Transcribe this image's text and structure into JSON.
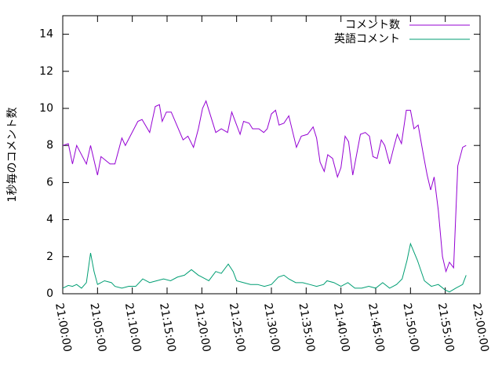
{
  "chart_data": {
    "type": "line",
    "ylabel": "1秒毎のコメント数",
    "xlim": [
      "21:00:00",
      "22:00:00"
    ],
    "xticks": [
      "21:00:00",
      "21:05:00",
      "21:10:00",
      "21:15:00",
      "21:20:00",
      "21:25:00",
      "21:30:00",
      "21:35:00",
      "21:40:00",
      "21:45:00",
      "21:50:00",
      "21:55:00",
      "22:00:00"
    ],
    "ylim": [
      0,
      15
    ],
    "yticks": [
      0,
      2,
      4,
      6,
      8,
      10,
      12,
      14
    ],
    "legend": "top-right",
    "series": [
      {
        "name": "コメント数",
        "color": "#9400d3",
        "x": [
          "21:00:00",
          "21:00:48",
          "21:01:24",
          "21:02:00",
          "21:03:24",
          "21:04:00",
          "21:05:00",
          "21:05:30",
          "21:06:48",
          "21:07:30",
          "21:08:30",
          "21:09:00",
          "21:10:48",
          "21:11:24",
          "21:12:30",
          "21:13:18",
          "21:13:54",
          "21:14:18",
          "21:14:54",
          "21:15:36",
          "21:17:18",
          "21:18:00",
          "21:18:48",
          "21:19:30",
          "21:20:06",
          "21:20:36",
          "21:22:00",
          "21:22:48",
          "21:23:42",
          "21:24:18",
          "21:25:30",
          "21:26:00",
          "21:26:48",
          "21:27:18",
          "21:28:12",
          "21:28:54",
          "21:29:24",
          "21:30:00",
          "21:30:36",
          "21:31:06",
          "21:31:48",
          "21:32:30",
          "21:33:36",
          "21:34:18",
          "21:35:12",
          "21:36:00",
          "21:36:30",
          "21:37:00",
          "21:37:36",
          "21:38:06",
          "21:38:48",
          "21:39:30",
          "21:40:00",
          "21:40:36",
          "21:41:06",
          "21:41:42",
          "21:42:48",
          "21:43:30",
          "21:44:06",
          "21:44:36",
          "21:45:12",
          "21:45:48",
          "21:46:18",
          "21:47:00",
          "21:47:36",
          "21:48:06",
          "21:48:42",
          "21:49:24",
          "21:50:00",
          "21:50:30",
          "21:51:06",
          "21:51:54",
          "21:52:24",
          "21:52:54",
          "21:53:24",
          "21:54:00",
          "21:54:36",
          "21:55:06",
          "21:55:36",
          "21:56:12",
          "21:56:48",
          "21:57:30",
          "21:58:00"
        ],
        "values": [
          8.0,
          8.1,
          7.0,
          8.0,
          7.0,
          8.0,
          6.4,
          7.4,
          7.0,
          7.0,
          8.4,
          8.0,
          9.3,
          9.4,
          8.7,
          10.1,
          10.2,
          9.3,
          9.8,
          9.8,
          8.3,
          8.5,
          7.9,
          8.9,
          10.0,
          10.4,
          8.7,
          8.9,
          8.7,
          9.8,
          8.6,
          9.3,
          9.2,
          8.9,
          8.9,
          8.7,
          8.9,
          9.7,
          9.9,
          9.1,
          9.2,
          9.6,
          7.9,
          8.5,
          8.6,
          9.0,
          8.4,
          7.1,
          6.6,
          7.5,
          7.3,
          6.3,
          6.8,
          8.5,
          8.2,
          6.4,
          8.6,
          8.7,
          8.5,
          7.4,
          7.3,
          8.3,
          8.0,
          7.0,
          7.9,
          8.6,
          8.1,
          9.9,
          9.9,
          8.9,
          9.1,
          7.4,
          6.4,
          5.6,
          6.3,
          4.5,
          2.0,
          1.2,
          1.7,
          1.4,
          6.9,
          7.9,
          8.0
        ]
      },
      {
        "name": "英語コメント",
        "color": "#009e73",
        "x": [
          "21:00:00",
          "21:00:48",
          "21:01:24",
          "21:02:00",
          "21:02:42",
          "21:03:24",
          "21:04:00",
          "21:04:30",
          "21:05:00",
          "21:06:00",
          "21:07:00",
          "21:07:30",
          "21:08:30",
          "21:09:30",
          "21:10:30",
          "21:11:30",
          "21:12:30",
          "21:13:30",
          "21:14:30",
          "21:15:30",
          "21:16:30",
          "21:17:30",
          "21:18:30",
          "21:19:30",
          "21:20:30",
          "21:21:00",
          "21:22:00",
          "21:22:48",
          "21:23:48",
          "21:24:30",
          "21:25:00",
          "21:26:00",
          "21:27:00",
          "21:28:00",
          "21:29:00",
          "21:30:00",
          "21:31:00",
          "21:31:48",
          "21:32:30",
          "21:33:30",
          "21:34:30",
          "21:35:30",
          "21:36:30",
          "21:37:30",
          "21:38:00",
          "21:39:00",
          "21:40:00",
          "21:41:00",
          "21:42:00",
          "21:43:00",
          "21:44:00",
          "21:45:00",
          "21:46:00",
          "21:47:00",
          "21:48:00",
          "21:48:48",
          "21:49:30",
          "21:50:00",
          "21:51:00",
          "21:52:00",
          "21:53:00",
          "21:54:00",
          "21:55:00",
          "21:55:36",
          "21:56:30",
          "21:57:30",
          "21:58:00"
        ],
        "values": [
          0.3,
          0.45,
          0.4,
          0.5,
          0.3,
          0.6,
          2.2,
          1.2,
          0.5,
          0.7,
          0.6,
          0.4,
          0.3,
          0.4,
          0.4,
          0.8,
          0.6,
          0.7,
          0.8,
          0.7,
          0.9,
          1.0,
          1.3,
          1.0,
          0.8,
          0.7,
          1.2,
          1.1,
          1.6,
          1.2,
          0.7,
          0.6,
          0.5,
          0.5,
          0.4,
          0.5,
          0.9,
          1.0,
          0.8,
          0.6,
          0.6,
          0.5,
          0.4,
          0.5,
          0.7,
          0.6,
          0.4,
          0.6,
          0.3,
          0.3,
          0.4,
          0.3,
          0.6,
          0.3,
          0.5,
          0.8,
          1.8,
          2.7,
          1.8,
          0.7,
          0.4,
          0.5,
          0.2,
          0.1,
          0.3,
          0.5,
          1.0
        ]
      }
    ]
  }
}
